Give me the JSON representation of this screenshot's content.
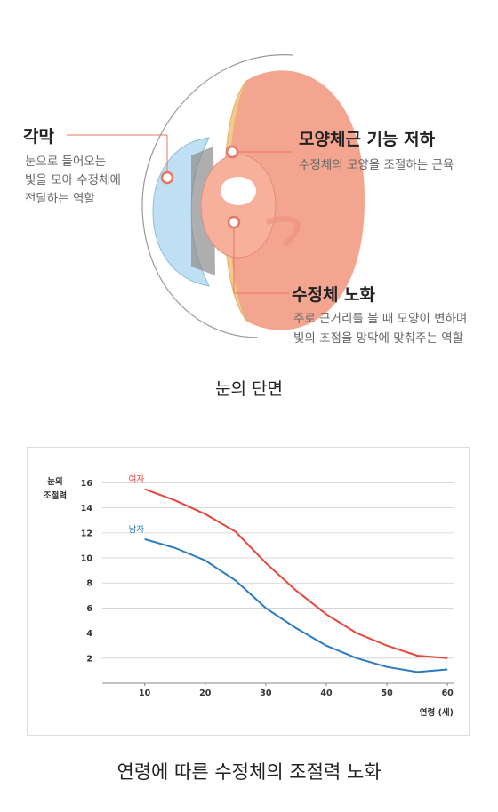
{
  "diagram": {
    "cornea": {
      "title": "각막",
      "lines": [
        "눈으로 들어오는",
        "빛을 모아 수정체에",
        "전달하는 역할"
      ]
    },
    "ciliary": {
      "title": "모양체근 기능 저하",
      "lines": [
        "수정체의 모양을 조절하는 근육"
      ]
    },
    "lens": {
      "title": "수정체 노화",
      "lines": [
        "주로 근거리를 볼 때 모양이 변하며",
        "빛의 초점을 망막에 맞춰주는 역할"
      ]
    },
    "caption": "눈의 단면"
  },
  "chart_data": {
    "type": "line",
    "title": "연령에 따른 수정체의 조절력 노화",
    "ylabel": [
      "눈의",
      "조절력"
    ],
    "xlabel": "연령 (세)",
    "x": [
      10,
      15,
      20,
      25,
      30,
      35,
      40,
      45,
      50,
      55,
      60
    ],
    "series": [
      {
        "name": "여자",
        "color": "#e8453c",
        "values": [
          15.5,
          14.6,
          13.5,
          12.1,
          9.6,
          7.4,
          5.5,
          4.0,
          3.0,
          2.2,
          2.0
        ]
      },
      {
        "name": "남자",
        "color": "#2a7bbf",
        "values": [
          11.5,
          10.8,
          9.8,
          8.2,
          6.0,
          4.4,
          3.0,
          2.0,
          1.3,
          0.9,
          1.1
        ]
      }
    ],
    "xlim": [
      3,
      61
    ],
    "ylim": [
      0,
      16.6
    ],
    "xticks": [
      10,
      20,
      30,
      40,
      50,
      60
    ],
    "yticks": [
      2,
      4,
      6,
      8,
      10,
      12,
      14,
      16
    ],
    "grid": true
  }
}
